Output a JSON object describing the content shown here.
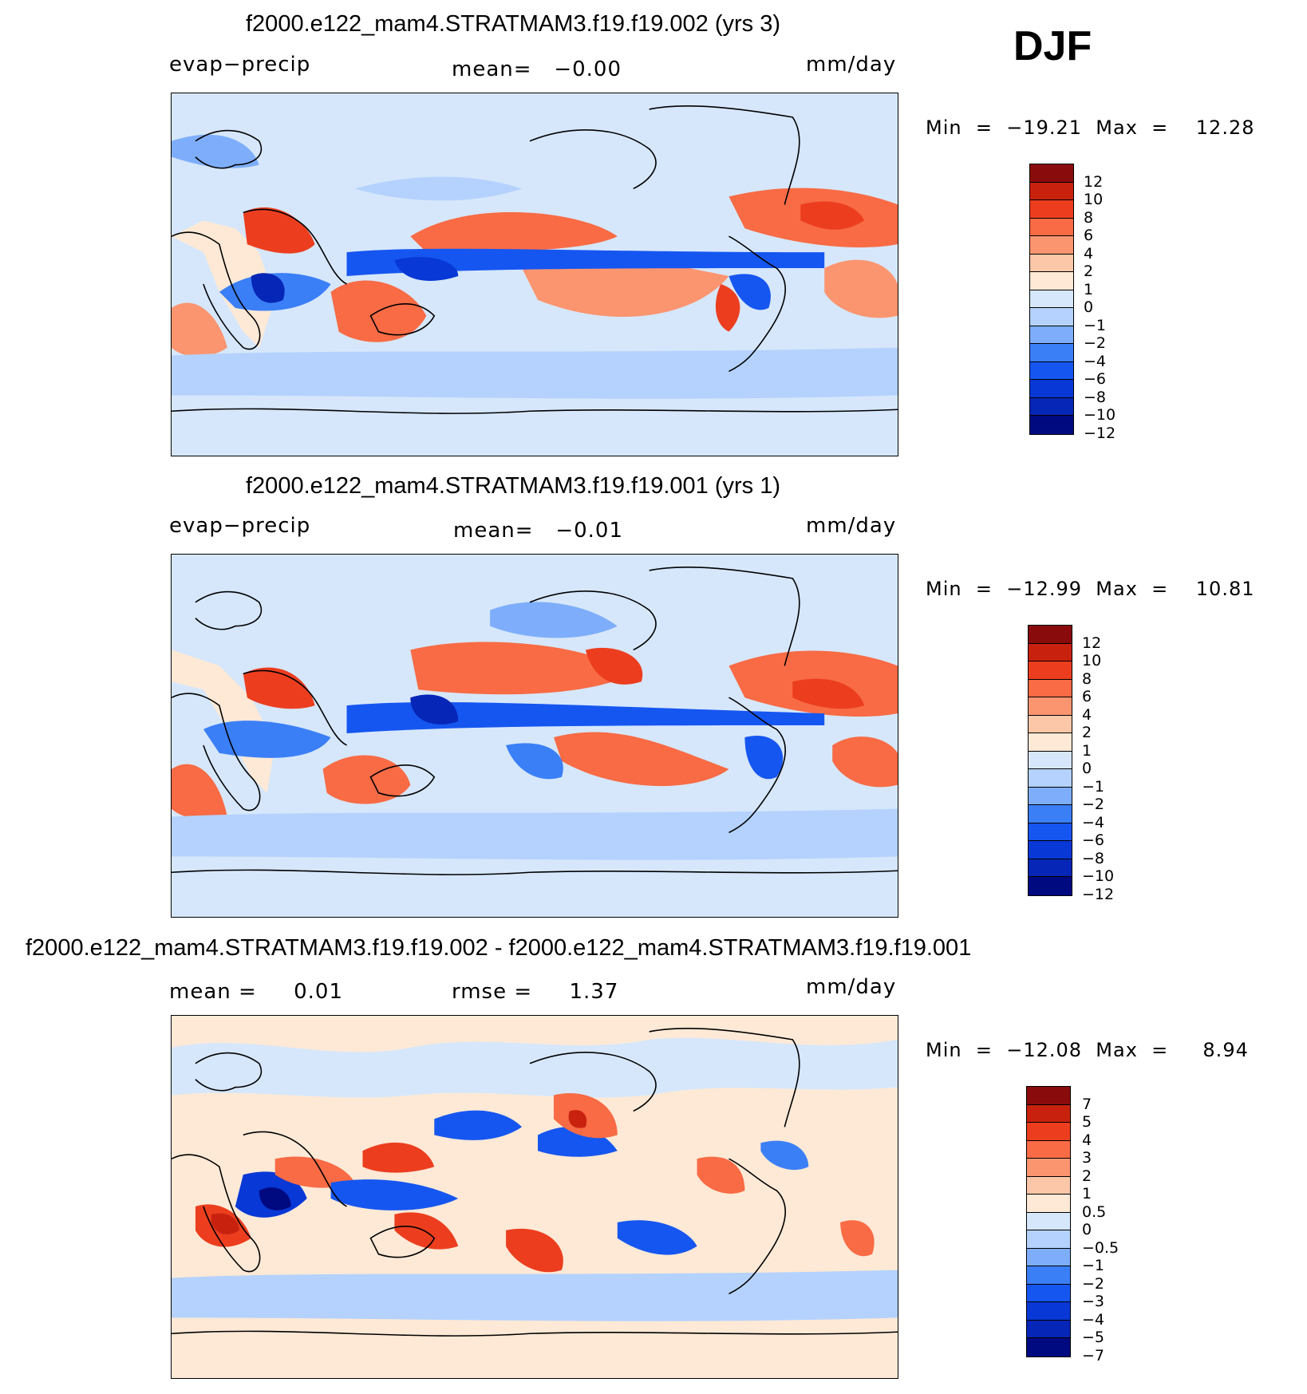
{
  "season": "DJF",
  "palette": {
    "colors13": [
      "#000a80",
      "#0526b6",
      "#0838d6",
      "#1656f0",
      "#3b7ff7",
      "#7eaefb",
      "#b4d2fd",
      "#d6e7fb",
      "#fde9d6",
      "#fcc7a8",
      "#fb9570",
      "#f86b45",
      "#ec3e1f",
      "#c8220f",
      "#8a0b0b"
    ],
    "coast": "#000000"
  },
  "panels": [
    {
      "title": "f2000.e122_mam4.STRATMAM3.f19.f19.002 (yrs 3)",
      "variable": "evap−precip",
      "stat": "mean=   −0.00",
      "units": "mm/day",
      "minmax": "Min  =  −19.21  Max  =    12.28",
      "levels": [
        "12",
        "10",
        "8",
        "6",
        "4",
        "2",
        "1",
        "0",
        "−1",
        "−2",
        "−4",
        "−6",
        "−8",
        "−10",
        "−12"
      ]
    },
    {
      "title": "f2000.e122_mam4.STRATMAM3.f19.f19.001 (yrs 1)",
      "variable": "evap−precip",
      "stat": "mean=   −0.01",
      "units": "mm/day",
      "minmax": "Min  =  −12.99  Max  =    10.81",
      "levels": [
        "12",
        "10",
        "8",
        "6",
        "4",
        "2",
        "1",
        "0",
        "−1",
        "−2",
        "−4",
        "−6",
        "−8",
        "−10",
        "−12"
      ]
    },
    {
      "title": "f2000.e122_mam4.STRATMAM3.f19.f19.002 - f2000.e122_mam4.STRATMAM3.f19.f19.001",
      "variable": "mean =     0.01",
      "stat": "rmse =     1.37",
      "units": "mm/day",
      "minmax": "Min  =  −12.08  Max  =     8.94",
      "levels": [
        "7",
        "5",
        "4",
        "3",
        "2",
        "1",
        "0.5",
        "0",
        "−0.5",
        "−1",
        "−2",
        "−3",
        "−4",
        "−5",
        "−7"
      ]
    }
  ]
}
